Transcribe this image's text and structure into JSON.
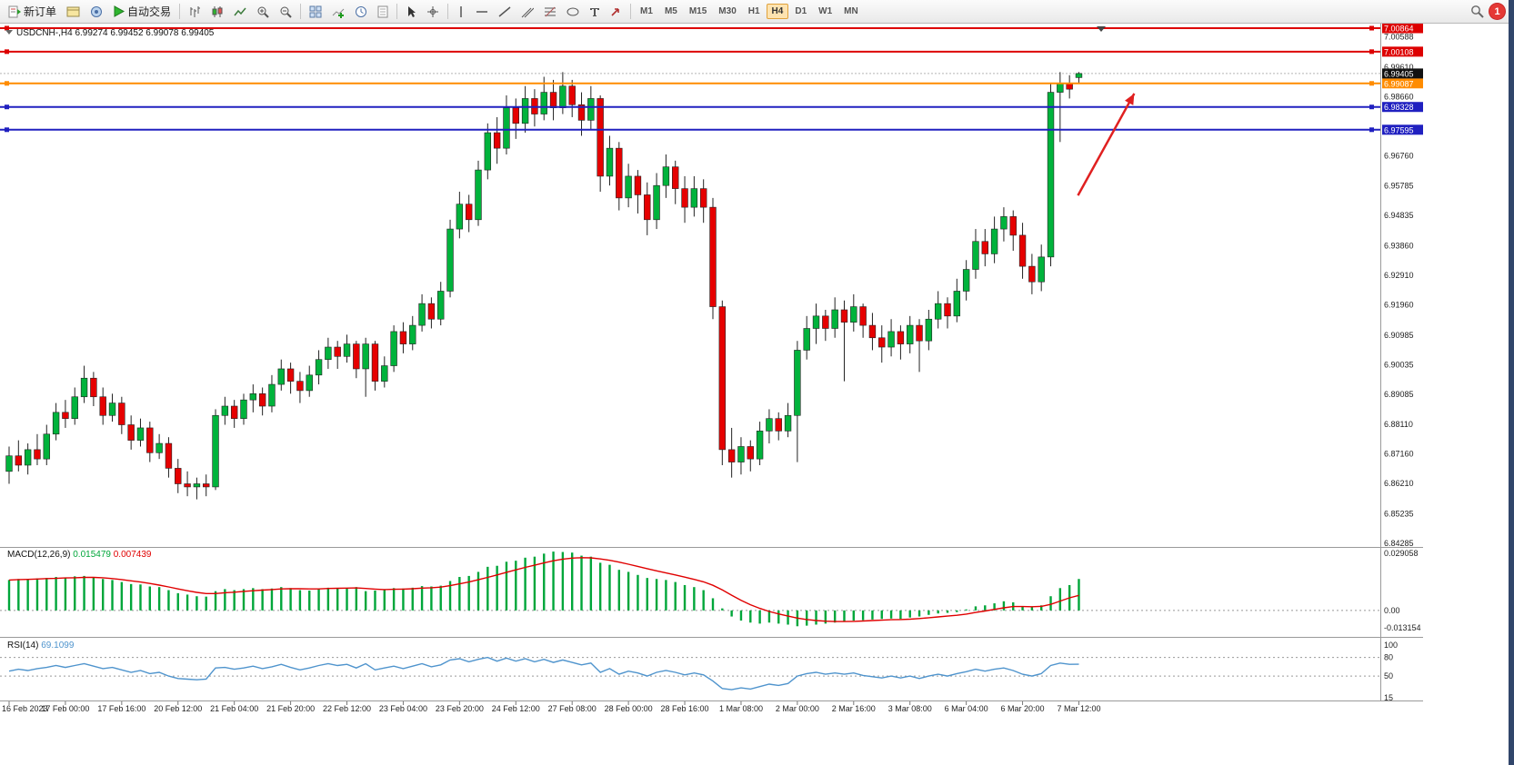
{
  "toolbar": {
    "new_order_label": "新订单",
    "autotrade_label": "自动交易",
    "timeframes": [
      "M1",
      "M5",
      "M15",
      "M30",
      "H1",
      "H4",
      "D1",
      "W1",
      "MN"
    ],
    "active_timeframe": "H4",
    "notification_count": "1"
  },
  "chart": {
    "header": {
      "symbol_period": "USDCNH-,H4",
      "open": "6.99274",
      "high": "6.99452",
      "low": "6.99078",
      "close": "6.99405"
    }
  },
  "price_scale": {
    "plain": [
      "7.00588",
      "6.99610",
      "6.98660",
      "6.96760",
      "6.95785",
      "6.94835",
      "6.93860",
      "6.92910",
      "6.91960",
      "6.90985",
      "6.90035",
      "6.89085",
      "6.88110",
      "6.87160",
      "6.86210",
      "6.85235",
      "6.84285"
    ],
    "bid_label": "6.99405"
  },
  "indicators": {
    "macd": {
      "name": "MACD(12,26,9)",
      "main_value": "0.015479",
      "signal_value": "0.007439",
      "scale_max": "0.029058",
      "scale_zero": "0.00",
      "scale_min": "-0.013154"
    },
    "rsi": {
      "name": "RSI(14)",
      "value": "69.1099",
      "scale": [
        "100",
        "80",
        "50",
        "15"
      ],
      "dashed_levels": [
        80,
        50
      ]
    }
  },
  "time_axis": [
    "16 Feb 2023",
    "17 Feb 00:00",
    "17 Feb 16:00",
    "20 Feb 12:00",
    "21 Feb 04:00",
    "21 Feb 20:00",
    "22 Feb 12:00",
    "23 Feb 04:00",
    "23 Feb 20:00",
    "24 Feb 12:00",
    "27 Feb 08:00",
    "28 Feb 00:00",
    "28 Feb 16:00",
    "1 Mar 08:00",
    "2 Mar 00:00",
    "2 Mar 16:00",
    "3 Mar 08:00",
    "6 Mar 04:00",
    "6 Mar 20:00",
    "7 Mar 12:00"
  ],
  "chart_data": {
    "type": "candlestick",
    "symbol": "USDCNH-",
    "timeframe": "H4",
    "colors": {
      "up": "#00b33c",
      "down": "#e60000",
      "outline": "#222222",
      "macd_hist": "#00a63a",
      "macd_signal": "#e00000",
      "rsi": "#4f94cd",
      "arrow": "#e02020",
      "bid_box": "#111111"
    },
    "candles": [
      [
        6.866,
        6.874,
        6.862,
        6.871
      ],
      [
        6.871,
        6.876,
        6.866,
        6.868
      ],
      [
        6.868,
        6.875,
        6.865,
        6.873
      ],
      [
        6.873,
        6.878,
        6.868,
        6.87
      ],
      [
        6.87,
        6.881,
        6.868,
        6.878
      ],
      [
        6.878,
        6.888,
        6.876,
        6.885
      ],
      [
        6.885,
        6.889,
        6.88,
        6.883
      ],
      [
        6.883,
        6.893,
        6.881,
        6.89
      ],
      [
        6.89,
        6.9,
        6.888,
        6.896
      ],
      [
        6.896,
        6.898,
        6.887,
        6.89
      ],
      [
        6.89,
        6.893,
        6.881,
        6.884
      ],
      [
        6.884,
        6.891,
        6.882,
        6.888
      ],
      [
        6.888,
        6.89,
        6.878,
        6.881
      ],
      [
        6.881,
        6.884,
        6.873,
        6.876
      ],
      [
        6.876,
        6.883,
        6.874,
        6.88
      ],
      [
        6.88,
        6.882,
        6.869,
        6.872
      ],
      [
        6.872,
        6.878,
        6.87,
        6.875
      ],
      [
        6.875,
        6.877,
        6.864,
        6.867
      ],
      [
        6.867,
        6.87,
        6.859,
        6.862
      ],
      [
        6.862,
        6.866,
        6.858,
        6.861
      ],
      [
        6.861,
        6.864,
        6.857,
        6.862
      ],
      [
        6.862,
        6.865,
        6.858,
        6.861
      ],
      [
        6.861,
        6.886,
        6.86,
        6.884
      ],
      [
        6.884,
        6.89,
        6.881,
        6.887
      ],
      [
        6.887,
        6.889,
        6.88,
        6.883
      ],
      [
        6.883,
        6.891,
        6.881,
        6.889
      ],
      [
        6.889,
        6.894,
        6.885,
        6.891
      ],
      [
        6.891,
        6.893,
        6.884,
        6.887
      ],
      [
        6.887,
        6.897,
        6.885,
        6.894
      ],
      [
        6.894,
        6.902,
        6.892,
        6.899
      ],
      [
        6.899,
        6.901,
        6.891,
        6.895
      ],
      [
        6.895,
        6.898,
        6.888,
        6.892
      ],
      [
        6.892,
        6.9,
        6.89,
        6.897
      ],
      [
        6.897,
        6.905,
        6.894,
        6.902
      ],
      [
        6.902,
        6.909,
        6.899,
        6.906
      ],
      [
        6.906,
        6.908,
        6.899,
        6.903
      ],
      [
        6.903,
        6.91,
        6.901,
        6.907
      ],
      [
        6.907,
        6.908,
        6.896,
        6.899
      ],
      [
        6.899,
        6.909,
        6.89,
        6.907
      ],
      [
        6.907,
        6.908,
        6.892,
        6.895
      ],
      [
        6.895,
        6.903,
        6.893,
        6.9
      ],
      [
        6.9,
        6.913,
        6.898,
        6.911
      ],
      [
        6.911,
        6.914,
        6.904,
        6.907
      ],
      [
        6.907,
        6.916,
        6.905,
        6.913
      ],
      [
        6.913,
        6.923,
        6.911,
        6.92
      ],
      [
        6.92,
        6.922,
        6.912,
        6.915
      ],
      [
        6.915,
        6.927,
        6.913,
        6.924
      ],
      [
        6.924,
        6.947,
        6.922,
        6.944
      ],
      [
        6.944,
        6.956,
        6.941,
        6.952
      ],
      [
        6.952,
        6.955,
        6.943,
        6.947
      ],
      [
        6.947,
        6.966,
        6.945,
        6.963
      ],
      [
        6.963,
        6.978,
        6.96,
        6.975
      ],
      [
        6.975,
        6.98,
        6.965,
        6.97
      ],
      [
        6.97,
        6.987,
        6.968,
        6.983
      ],
      [
        6.983,
        6.986,
        6.973,
        6.978
      ],
      [
        6.978,
        6.99,
        6.975,
        6.986
      ],
      [
        6.986,
        6.989,
        6.977,
        6.981
      ],
      [
        6.981,
        6.993,
        6.979,
        6.988
      ],
      [
        6.988,
        6.992,
        6.979,
        6.983
      ],
      [
        6.983,
        6.9945,
        6.981,
        6.99
      ],
      [
        6.99,
        6.992,
        6.98,
        6.984
      ],
      [
        6.984,
        6.988,
        6.974,
        6.979
      ],
      [
        6.979,
        6.99,
        6.976,
        6.986
      ],
      [
        6.986,
        6.987,
        6.956,
        6.961
      ],
      [
        6.961,
        6.974,
        6.958,
        6.97
      ],
      [
        6.97,
        6.972,
        6.95,
        6.954
      ],
      [
        6.954,
        6.965,
        6.951,
        6.961
      ],
      [
        6.961,
        6.963,
        6.949,
        6.955
      ],
      [
        6.955,
        6.959,
        6.942,
        6.947
      ],
      [
        6.947,
        6.962,
        6.944,
        6.958
      ],
      [
        6.958,
        6.968,
        6.954,
        6.964
      ],
      [
        6.964,
        6.966,
        6.952,
        6.957
      ],
      [
        6.957,
        6.961,
        6.946,
        6.951
      ],
      [
        6.951,
        6.961,
        6.948,
        6.957
      ],
      [
        6.957,
        6.96,
        6.946,
        6.951
      ],
      [
        6.951,
        6.954,
        6.915,
        6.919
      ],
      [
        6.919,
        6.921,
        6.868,
        6.873
      ],
      [
        6.873,
        6.88,
        6.864,
        6.869
      ],
      [
        6.869,
        6.877,
        6.865,
        6.874
      ],
      [
        6.874,
        6.876,
        6.866,
        6.87
      ],
      [
        6.87,
        6.882,
        6.868,
        6.879
      ],
      [
        6.879,
        6.886,
        6.875,
        6.883
      ],
      [
        6.883,
        6.885,
        6.876,
        6.879
      ],
      [
        6.879,
        6.888,
        6.877,
        6.884
      ],
      [
        6.884,
        6.908,
        6.869,
        6.905
      ],
      [
        6.905,
        6.916,
        6.902,
        6.912
      ],
      [
        6.912,
        6.92,
        6.907,
        6.916
      ],
      [
        6.916,
        6.918,
        6.908,
        6.912
      ],
      [
        6.912,
        6.922,
        6.909,
        6.918
      ],
      [
        6.918,
        6.921,
        6.895,
        6.914
      ],
      [
        6.914,
        6.923,
        6.911,
        6.919
      ],
      [
        6.919,
        6.92,
        6.909,
        6.913
      ],
      [
        6.913,
        6.917,
        6.905,
        6.909
      ],
      [
        6.909,
        6.913,
        6.901,
        6.906
      ],
      [
        6.906,
        6.915,
        6.903,
        6.911
      ],
      [
        6.911,
        6.913,
        6.902,
        6.907
      ],
      [
        6.907,
        6.916,
        6.904,
        6.913
      ],
      [
        6.913,
        6.915,
        6.898,
        6.908
      ],
      [
        6.908,
        6.918,
        6.905,
        6.915
      ],
      [
        6.915,
        6.924,
        6.912,
        6.92
      ],
      [
        6.92,
        6.922,
        6.912,
        6.916
      ],
      [
        6.916,
        6.928,
        6.914,
        6.924
      ],
      [
        6.924,
        6.934,
        6.921,
        6.931
      ],
      [
        6.931,
        6.944,
        6.928,
        6.94
      ],
      [
        6.94,
        6.944,
        6.932,
        6.936
      ],
      [
        6.936,
        6.948,
        6.933,
        6.944
      ],
      [
        6.944,
        6.951,
        6.94,
        6.948
      ],
      [
        6.948,
        6.95,
        6.937,
        6.942
      ],
      [
        6.942,
        6.946,
        6.928,
        6.932
      ],
      [
        6.932,
        6.936,
        6.923,
        6.927
      ],
      [
        6.927,
        6.939,
        6.924,
        6.935
      ],
      [
        6.935,
        6.991,
        6.932,
        6.988
      ],
      [
        6.988,
        6.9945,
        6.972,
        6.991
      ],
      [
        6.991,
        6.9935,
        6.986,
        6.989
      ],
      [
        6.99274,
        6.99452,
        6.99078,
        6.99405
      ]
    ],
    "hlines": [
      {
        "price": 7.00864,
        "label": "7.00864",
        "color": "#dd0000",
        "width": 2
      },
      {
        "price": 7.00108,
        "label": "7.00108",
        "color": "#dd0000",
        "width": 2
      },
      {
        "price": 6.99087,
        "label": "6.99087",
        "color": "#ff8c00",
        "width": 2
      },
      {
        "price": 6.98328,
        "label": "6.98328",
        "color": "#2020c0",
        "width": 2
      },
      {
        "price": 6.97595,
        "label": "6.97595",
        "color": "#2020c0",
        "width": 2
      }
    ],
    "bid": 6.99405,
    "macd_hist": [
      0.015,
      0.0155,
      0.0152,
      0.0158,
      0.016,
      0.0165,
      0.0162,
      0.0168,
      0.017,
      0.0165,
      0.0155,
      0.015,
      0.014,
      0.013,
      0.0128,
      0.0118,
      0.0115,
      0.01,
      0.0085,
      0.0078,
      0.007,
      0.0068,
      0.0095,
      0.0105,
      0.01,
      0.0105,
      0.011,
      0.0105,
      0.0108,
      0.0115,
      0.011,
      0.01,
      0.0098,
      0.0105,
      0.0112,
      0.011,
      0.0108,
      0.0115,
      0.0095,
      0.0098,
      0.0102,
      0.011,
      0.0108,
      0.0112,
      0.012,
      0.0118,
      0.0122,
      0.0145,
      0.0165,
      0.017,
      0.019,
      0.0215,
      0.022,
      0.024,
      0.0245,
      0.026,
      0.0265,
      0.028,
      0.029,
      0.0288,
      0.0285,
      0.027,
      0.0265,
      0.0235,
      0.0225,
      0.02,
      0.019,
      0.0175,
      0.016,
      0.0155,
      0.015,
      0.014,
      0.0125,
      0.0115,
      0.01,
      0.006,
      0.001,
      -0.003,
      -0.005,
      -0.006,
      -0.0065,
      -0.006,
      -0.0065,
      -0.007,
      -0.0078,
      -0.0075,
      -0.007,
      -0.0065,
      -0.006,
      -0.0055,
      -0.005,
      -0.0048,
      -0.0045,
      -0.0042,
      -0.004,
      -0.0042,
      -0.0035,
      -0.003,
      -0.0022,
      -0.0015,
      -0.0012,
      -0.0008,
      0.0005,
      0.002,
      0.0025,
      0.0035,
      0.0045,
      0.004,
      0.002,
      0.0015,
      0.0025,
      0.007,
      0.011,
      0.0125,
      0.0155
    ],
    "macd_signal": [
      0.015,
      0.0152,
      0.0153,
      0.0155,
      0.0157,
      0.0158,
      0.016,
      0.0161,
      0.0163,
      0.0163,
      0.0161,
      0.0157,
      0.0152,
      0.0146,
      0.014,
      0.0133,
      0.0125,
      0.0116,
      0.0106,
      0.0097,
      0.0089,
      0.0083,
      0.0083,
      0.0087,
      0.009,
      0.0094,
      0.0097,
      0.01,
      0.0103,
      0.0106,
      0.0107,
      0.0107,
      0.0106,
      0.0106,
      0.0108,
      0.0109,
      0.011,
      0.0111,
      0.0108,
      0.0105,
      0.0103,
      0.0104,
      0.0105,
      0.0107,
      0.011,
      0.0112,
      0.0115,
      0.0122,
      0.0131,
      0.014,
      0.0151,
      0.0163,
      0.0175,
      0.0188,
      0.02,
      0.0212,
      0.0223,
      0.0234,
      0.0245,
      0.0253,
      0.0258,
      0.026,
      0.0259,
      0.0254,
      0.0247,
      0.0238,
      0.0228,
      0.0217,
      0.0206,
      0.0195,
      0.0185,
      0.0175,
      0.0164,
      0.0153,
      0.0141,
      0.0124,
      0.0101,
      0.0075,
      0.005,
      0.0028,
      0.001,
      -0.0005,
      -0.0017,
      -0.0028,
      -0.0038,
      -0.0045,
      -0.005,
      -0.0053,
      -0.0055,
      -0.0055,
      -0.0054,
      -0.0052,
      -0.005,
      -0.0048,
      -0.0046,
      -0.0045,
      -0.0043,
      -0.004,
      -0.0036,
      -0.0032,
      -0.0028,
      -0.0024,
      -0.0018,
      -0.001,
      -0.0003,
      0.0005,
      0.0013,
      0.0019,
      0.0019,
      0.0018,
      0.002,
      0.003,
      0.0046,
      0.0062,
      0.0074
    ],
    "rsi": [
      58,
      61,
      59,
      62,
      64,
      67,
      64,
      67,
      70,
      66,
      62,
      64,
      60,
      56,
      59,
      54,
      56,
      50,
      46,
      45,
      44,
      45,
      63,
      64,
      61,
      63,
      66,
      62,
      65,
      69,
      64,
      60,
      63,
      67,
      70,
      67,
      69,
      63,
      70,
      60,
      63,
      66,
      62,
      66,
      70,
      65,
      68,
      76,
      78,
      73,
      77,
      80,
      74,
      79,
      74,
      78,
      73,
      77,
      72,
      76,
      72,
      68,
      71,
      56,
      62,
      53,
      58,
      55,
      50,
      56,
      59,
      56,
      52,
      55,
      52,
      42,
      30,
      28,
      31,
      29,
      33,
      37,
      35,
      38,
      50,
      54,
      56,
      53,
      55,
      53,
      55,
      51,
      49,
      47,
      50,
      47,
      50,
      46,
      50,
      53,
      50,
      54,
      57,
      61,
      58,
      61,
      63,
      59,
      53,
      50,
      54,
      67,
      71,
      69,
      69.1
    ],
    "arrow": {
      "start": {
        "index": 113.9,
        "price": 6.9548
      },
      "end": {
        "index": 119.9,
        "price": 6.9876
      },
      "color": "#e02020"
    }
  }
}
